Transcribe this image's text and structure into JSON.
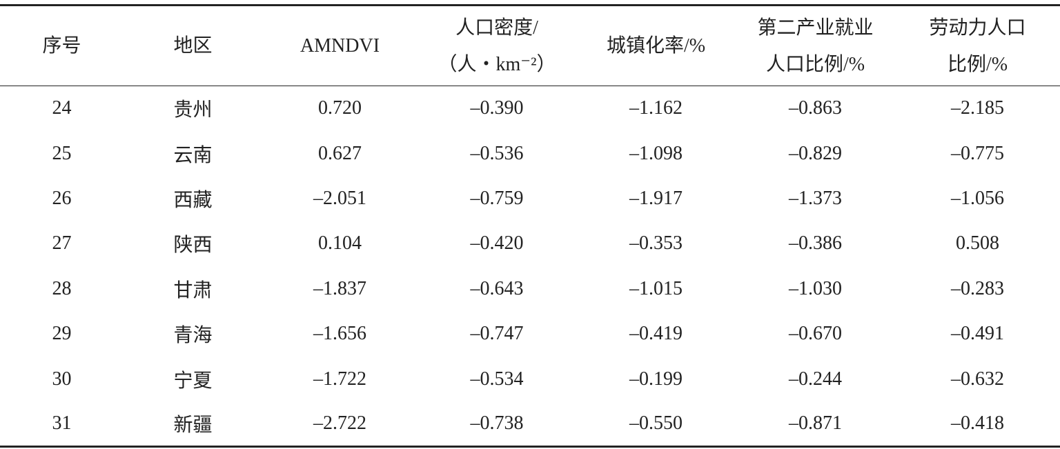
{
  "table": {
    "header": [
      [
        "序号"
      ],
      [
        "地区"
      ],
      [
        "AMNDVI"
      ],
      [
        "人口密度/",
        "（人・km⁻²）"
      ],
      [
        "城镇化率/%"
      ],
      [
        "第二产业就业",
        "人口比例/%"
      ],
      [
        "劳动力人口",
        "比例/%"
      ]
    ],
    "rows": [
      [
        "24",
        "贵州",
        "0.720",
        "–0.390",
        "–1.162",
        "–0.863",
        "–2.185"
      ],
      [
        "25",
        "云南",
        "0.627",
        "–0.536",
        "–1.098",
        "–0.829",
        "–0.775"
      ],
      [
        "26",
        "西藏",
        "–2.051",
        "–0.759",
        "–1.917",
        "–1.373",
        "–1.056"
      ],
      [
        "27",
        "陕西",
        "0.104",
        "–0.420",
        "–0.353",
        "–0.386",
        "0.508"
      ],
      [
        "28",
        "甘肃",
        "–1.837",
        "–0.643",
        "–1.015",
        "–1.030",
        "–0.283"
      ],
      [
        "29",
        "青海",
        "–1.656",
        "–0.747",
        "–0.419",
        "–0.670",
        "–0.491"
      ],
      [
        "30",
        "宁夏",
        "–1.722",
        "–0.534",
        "–0.199",
        "–0.244",
        "–0.632"
      ],
      [
        "31",
        "新疆",
        "–2.722",
        "–0.738",
        "–0.550",
        "–0.871",
        "–0.418"
      ]
    ]
  }
}
